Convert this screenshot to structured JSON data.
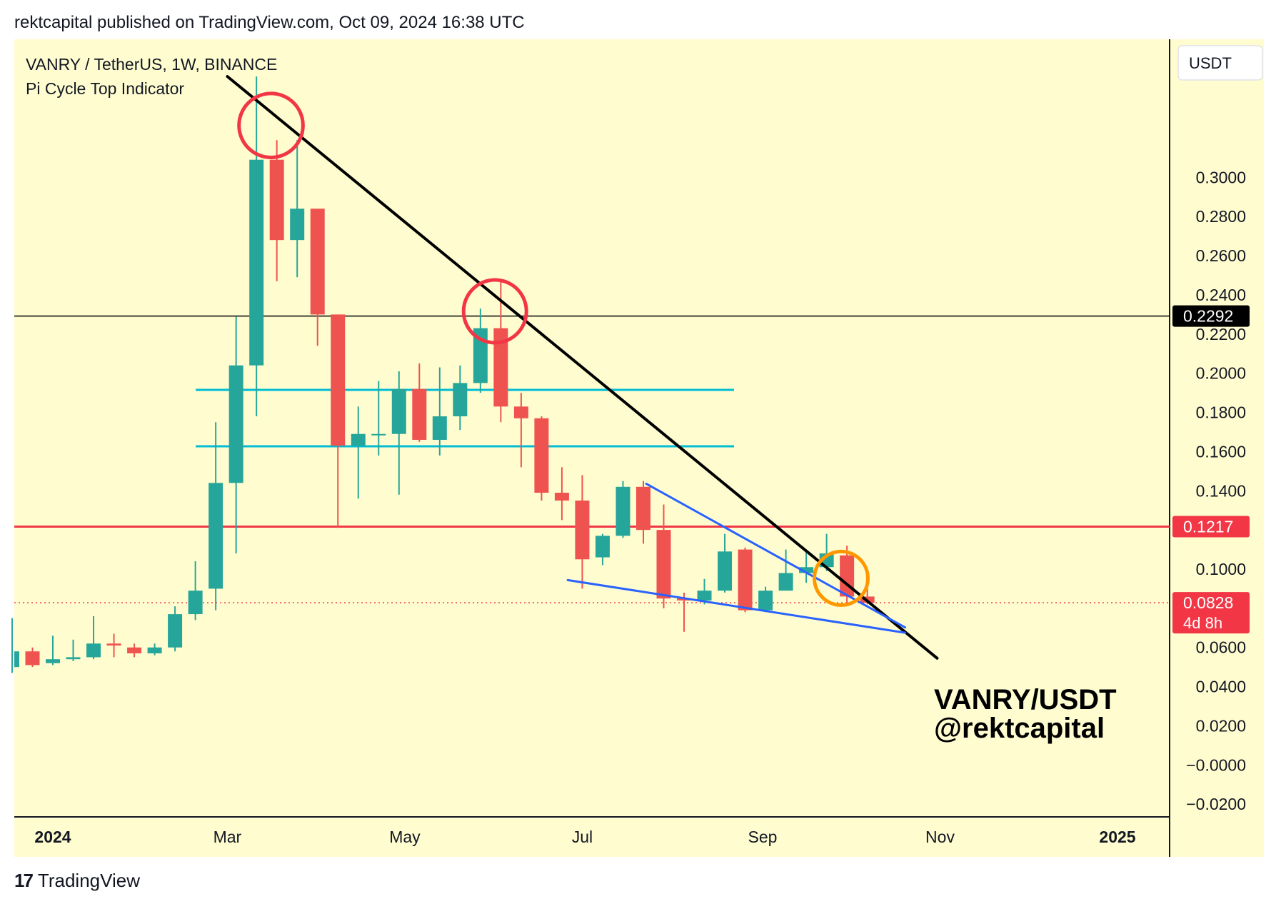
{
  "header": {
    "published": "rektcapital published on TradingView.com, Oct 09, 2024 16:38 UTC"
  },
  "footer": {
    "brand": "TradingView",
    "logo_icon": "tradingview-logo-icon"
  },
  "chart_data": {
    "type": "candlestick",
    "symbol_line": "VANRY / TetherUS, 1W, BINANCE",
    "indicator": "Pi Cycle Top Indicator",
    "currency_button": "USDT",
    "y_axis": {
      "ticks": [
        "0.3000",
        "0.2800",
        "0.2600",
        "0.2400",
        "0.2200",
        "0.2000",
        "0.1800",
        "0.1600",
        "0.1400",
        "0.1000",
        "0.0600",
        "0.0400",
        "0.0200",
        "−0.0000",
        "−0.0200"
      ],
      "tick_values": [
        0.3,
        0.28,
        0.26,
        0.24,
        0.22,
        0.2,
        0.18,
        0.16,
        0.14,
        0.1,
        0.06,
        0.04,
        0.02,
        0.0,
        -0.02
      ],
      "range": [
        -0.0265,
        0.3705
      ]
    },
    "x_axis": {
      "labels": [
        {
          "text": "2024",
          "date": "2024-01-01",
          "bold": true
        },
        {
          "text": "Mar",
          "date": "2024-03-01",
          "bold": false
        },
        {
          "text": "May",
          "date": "2024-05-01",
          "bold": false
        },
        {
          "text": "Jul",
          "date": "2024-07-01",
          "bold": false
        },
        {
          "text": "Sep",
          "date": "2024-09-01",
          "bold": false
        },
        {
          "text": "Nov",
          "date": "2024-11-01",
          "bold": false
        },
        {
          "text": "2025",
          "date": "2025-01-01",
          "bold": true
        }
      ]
    },
    "candles": [
      {
        "date": "2023-12-11",
        "o": 0.057,
        "h": 0.062,
        "l": 0.052,
        "c": 0.05
      },
      {
        "date": "2023-12-18",
        "o": 0.05,
        "h": 0.075,
        "l": 0.047,
        "c": 0.058
      },
      {
        "date": "2023-12-25",
        "o": 0.058,
        "h": 0.06,
        "l": 0.05,
        "c": 0.051
      },
      {
        "date": "2024-01-01",
        "o": 0.052,
        "h": 0.066,
        "l": 0.051,
        "c": 0.054
      },
      {
        "date": "2024-01-08",
        "o": 0.054,
        "h": 0.064,
        "l": 0.053,
        "c": 0.055
      },
      {
        "date": "2024-01-15",
        "o": 0.055,
        "h": 0.076,
        "l": 0.054,
        "c": 0.062
      },
      {
        "date": "2024-01-22",
        "o": 0.062,
        "h": 0.067,
        "l": 0.055,
        "c": 0.061
      },
      {
        "date": "2024-01-29",
        "o": 0.06,
        "h": 0.062,
        "l": 0.055,
        "c": 0.057
      },
      {
        "date": "2024-02-05",
        "o": 0.057,
        "h": 0.062,
        "l": 0.056,
        "c": 0.06
      },
      {
        "date": "2024-02-12",
        "o": 0.06,
        "h": 0.081,
        "l": 0.058,
        "c": 0.077
      },
      {
        "date": "2024-02-19",
        "o": 0.077,
        "h": 0.104,
        "l": 0.074,
        "c": 0.089
      },
      {
        "date": "2024-02-26",
        "o": 0.09,
        "h": 0.175,
        "l": 0.079,
        "c": 0.144
      },
      {
        "date": "2024-03-04",
        "o": 0.144,
        "h": 0.229,
        "l": 0.108,
        "c": 0.204
      },
      {
        "date": "2024-03-11",
        "o": 0.204,
        "h": 0.3515,
        "l": 0.178,
        "c": 0.309
      },
      {
        "date": "2024-03-18",
        "o": 0.309,
        "h": 0.319,
        "l": 0.247,
        "c": 0.268
      },
      {
        "date": "2024-03-25",
        "o": 0.268,
        "h": 0.319,
        "l": 0.249,
        "c": 0.284
      },
      {
        "date": "2024-04-01",
        "o": 0.284,
        "h": 0.284,
        "l": 0.214,
        "c": 0.23
      },
      {
        "date": "2024-04-08",
        "o": 0.23,
        "h": 0.23,
        "l": 0.121,
        "c": 0.163
      },
      {
        "date": "2024-04-15",
        "o": 0.163,
        "h": 0.183,
        "l": 0.136,
        "c": 0.169
      },
      {
        "date": "2024-04-22",
        "o": 0.169,
        "h": 0.196,
        "l": 0.158,
        "c": 0.169
      },
      {
        "date": "2024-04-29",
        "o": 0.169,
        "h": 0.201,
        "l": 0.138,
        "c": 0.192
      },
      {
        "date": "2024-05-06",
        "o": 0.192,
        "h": 0.205,
        "l": 0.165,
        "c": 0.166
      },
      {
        "date": "2024-05-13",
        "o": 0.166,
        "h": 0.203,
        "l": 0.158,
        "c": 0.178
      },
      {
        "date": "2024-05-20",
        "o": 0.178,
        "h": 0.204,
        "l": 0.171,
        "c": 0.195
      },
      {
        "date": "2024-05-27",
        "o": 0.195,
        "h": 0.233,
        "l": 0.19,
        "c": 0.223
      },
      {
        "date": "2024-06-03",
        "o": 0.223,
        "h": 0.248,
        "l": 0.175,
        "c": 0.183
      },
      {
        "date": "2024-06-10",
        "o": 0.183,
        "h": 0.19,
        "l": 0.152,
        "c": 0.177
      },
      {
        "date": "2024-06-17",
        "o": 0.177,
        "h": 0.178,
        "l": 0.135,
        "c": 0.139
      },
      {
        "date": "2024-06-24",
        "o": 0.139,
        "h": 0.152,
        "l": 0.125,
        "c": 0.135
      },
      {
        "date": "2024-07-01",
        "o": 0.135,
        "h": 0.148,
        "l": 0.09,
        "c": 0.105
      },
      {
        "date": "2024-07-08",
        "o": 0.106,
        "h": 0.118,
        "l": 0.102,
        "c": 0.117
      },
      {
        "date": "2024-07-15",
        "o": 0.117,
        "h": 0.145,
        "l": 0.116,
        "c": 0.142
      },
      {
        "date": "2024-07-22",
        "o": 0.142,
        "h": 0.145,
        "l": 0.113,
        "c": 0.12
      },
      {
        "date": "2024-07-29",
        "o": 0.12,
        "h": 0.133,
        "l": 0.08,
        "c": 0.085
      },
      {
        "date": "2024-08-05",
        "o": 0.085,
        "h": 0.088,
        "l": 0.068,
        "c": 0.084
      },
      {
        "date": "2024-08-12",
        "o": 0.084,
        "h": 0.095,
        "l": 0.082,
        "c": 0.089
      },
      {
        "date": "2024-08-19",
        "o": 0.089,
        "h": 0.118,
        "l": 0.088,
        "c": 0.109
      },
      {
        "date": "2024-08-26",
        "o": 0.11,
        "h": 0.111,
        "l": 0.078,
        "c": 0.079
      },
      {
        "date": "2024-09-02",
        "o": 0.079,
        "h": 0.091,
        "l": 0.078,
        "c": 0.089
      },
      {
        "date": "2024-09-09",
        "o": 0.089,
        "h": 0.11,
        "l": 0.089,
        "c": 0.098
      },
      {
        "date": "2024-09-16",
        "o": 0.098,
        "h": 0.109,
        "l": 0.093,
        "c": 0.101
      },
      {
        "date": "2024-09-23",
        "o": 0.101,
        "h": 0.118,
        "l": 0.099,
        "c": 0.108
      },
      {
        "date": "2024-09-30",
        "o": 0.107,
        "h": 0.112,
        "l": 0.081,
        "c": 0.086
      },
      {
        "date": "2024-10-07",
        "o": 0.086,
        "h": 0.09,
        "l": 0.082,
        "c": 0.0828
      }
    ],
    "colors": {
      "up": "#26a69a",
      "down": "#ef5350",
      "background": "#fffdd0"
    },
    "price_badges": [
      {
        "value": 0.2292,
        "text": "0.2292",
        "color": "#000000"
      },
      {
        "value": 0.1217,
        "text": "0.1217",
        "color": "#f23645"
      },
      {
        "value": 0.0828,
        "text": "0.0828",
        "sub": "4d 8h",
        "color": "#f23645"
      }
    ],
    "horizontal_lines": [
      {
        "value": 0.2292,
        "color": "#000000",
        "style": "solid"
      },
      {
        "value": 0.1217,
        "color": "#f23645",
        "style": "solid"
      },
      {
        "value": 0.0828,
        "color": "#f23645",
        "style": "dotted"
      }
    ],
    "drawings": {
      "range_lines": [
        {
          "value": 0.1915,
          "from": "2024-02-26",
          "to": "2024-08-19",
          "color": "#00bcd4"
        },
        {
          "value": 0.1627,
          "from": "2024-02-26",
          "to": "2024-08-19",
          "color": "#00bcd4"
        }
      ],
      "downtrend_line": {
        "points": [
          {
            "date": "2024-03-01",
            "value": 0.3515
          },
          {
            "date": "2024-10-31",
            "value": 0.0545
          }
        ],
        "color": "#000000"
      },
      "wedge_upper": {
        "points": [
          {
            "date": "2024-07-23",
            "value": 0.1436
          },
          {
            "date": "2024-10-20",
            "value": 0.0702
          }
        ],
        "color": "#2962ff"
      },
      "wedge_lower": {
        "points": [
          {
            "date": "2024-06-26",
            "value": 0.0944
          },
          {
            "date": "2024-10-20",
            "value": 0.0675
          }
        ],
        "color": "#2962ff"
      },
      "circles": [
        {
          "date": "2024-03-16",
          "value": 0.3265,
          "r_days": 11,
          "color": "#f23645"
        },
        {
          "date": "2024-06-01",
          "value": 0.2316,
          "r_days": 10.8,
          "color": "#f23645"
        },
        {
          "date": "2024-09-28",
          "value": 0.0953,
          "r_days": 9.2,
          "color": "#ff9800"
        }
      ]
    },
    "watermark": [
      "VANRY/USDT",
      "@rektcapital"
    ]
  }
}
